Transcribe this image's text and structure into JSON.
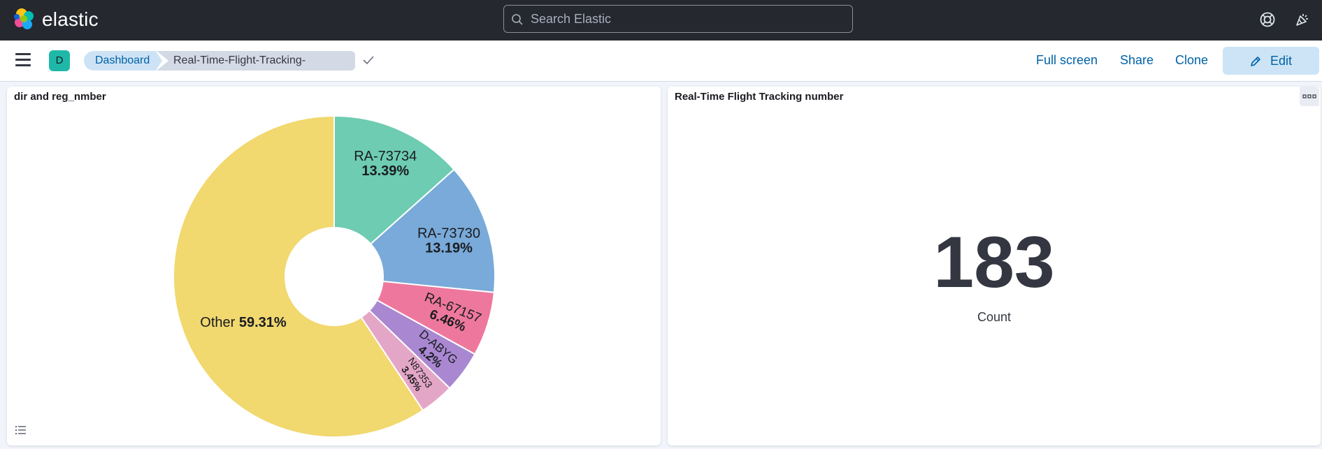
{
  "header": {
    "brand": "elastic",
    "search_placeholder": "Search Elastic"
  },
  "toolbar": {
    "space_initial": "D",
    "breadcrumbs": [
      "Dashboard",
      "Real-Time-Flight-Tracking-Project"
    ],
    "actions": {
      "full_screen": "Full screen",
      "share": "Share",
      "clone": "Clone",
      "edit": "Edit"
    }
  },
  "panels": {
    "left": {
      "title": "dir and reg_nmber"
    },
    "right": {
      "title": "Real-Time Flight Tracking number",
      "metric_value": "183",
      "metric_label": "Count"
    }
  },
  "chart_data": {
    "type": "pie",
    "donut": true,
    "slices": [
      {
        "label": "RA-73734",
        "value": 13.39,
        "display": "13.39%",
        "color": "#6dccb1"
      },
      {
        "label": "RA-73730",
        "value": 13.19,
        "display": "13.19%",
        "color": "#79aad9"
      },
      {
        "label": "RA-67157",
        "value": 6.46,
        "display": "6.46%",
        "color": "#ee789d"
      },
      {
        "label": "D-ABYG",
        "value": 4.2,
        "display": "4.2%",
        "color": "#a987d1"
      },
      {
        "label": "N87353",
        "value": 3.45,
        "display": "3.45%",
        "color": "#e4a6c7"
      },
      {
        "label": "Other",
        "value": 59.31,
        "display": "59.31%",
        "color": "#f1d86f"
      }
    ]
  }
}
